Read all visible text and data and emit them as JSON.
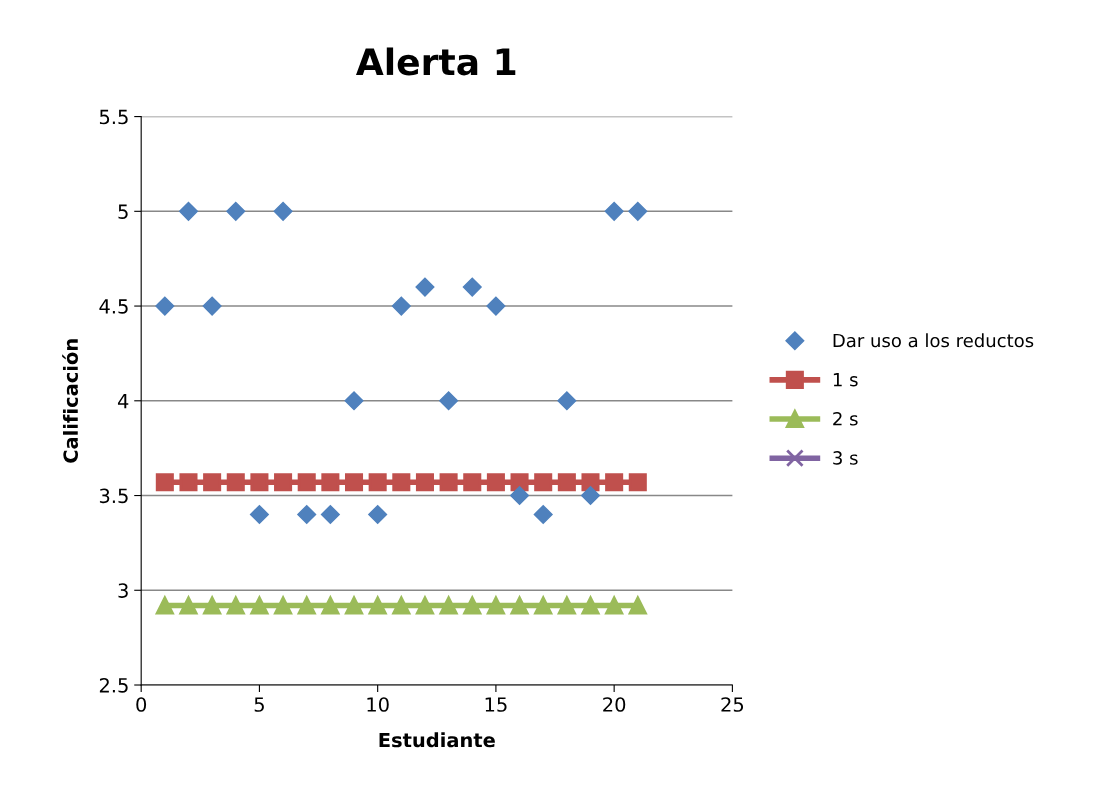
{
  "chart_data": {
    "type": "scatter",
    "title": "Alerta 1",
    "xlabel": "Estudiante",
    "ylabel": "Calificación",
    "x": [
      1,
      2,
      3,
      4,
      5,
      6,
      7,
      8,
      9,
      10,
      11,
      12,
      13,
      14,
      15,
      16,
      17,
      18,
      19,
      20,
      21
    ],
    "series": [
      {
        "name": "Dar uso a los reductos",
        "color": "#4f81bd",
        "marker": "diamond",
        "values": [
          4.5,
          5,
          4.5,
          5,
          3.4,
          5,
          3.4,
          3.4,
          4,
          3.4,
          4.5,
          4.6,
          4,
          4.6,
          4.5,
          3.5,
          3.4,
          4,
          3.5,
          5,
          5
        ]
      },
      {
        "name": "1 s",
        "color": "#c0504d",
        "type": "line",
        "marker": "square",
        "values": [
          3.57,
          3.57,
          3.57,
          3.57,
          3.57,
          3.57,
          3.57,
          3.57,
          3.57,
          3.57,
          3.57,
          3.57,
          3.57,
          3.57,
          3.57,
          3.57,
          3.57,
          3.57,
          3.57,
          3.57,
          3.57
        ]
      },
      {
        "name": "2 s",
        "color": "#9bbb59",
        "type": "line",
        "marker": "triangle",
        "values": [
          2.92,
          2.92,
          2.92,
          2.92,
          2.92,
          2.92,
          2.92,
          2.92,
          2.92,
          2.92,
          2.92,
          2.92,
          2.92,
          2.92,
          2.92,
          2.92,
          2.92,
          2.92,
          2.92,
          2.92,
          2.92
        ]
      },
      {
        "name": "3 s",
        "color": "#8064a2",
        "type": "line",
        "marker": "cross",
        "values": [
          null,
          null,
          null,
          null,
          null,
          null,
          null,
          null,
          null,
          null,
          null,
          null,
          null,
          null,
          null,
          null,
          null,
          null,
          null,
          null,
          null
        ]
      }
    ],
    "xlim": [
      0,
      25
    ],
    "xticks": [
      0,
      5,
      10,
      15,
      20,
      25
    ],
    "ylim": [
      2.5,
      5.5
    ],
    "yticks": [
      2.5,
      3,
      3.5,
      4,
      4.5,
      5,
      5.5
    ],
    "grid": "y",
    "legend": "right"
  }
}
